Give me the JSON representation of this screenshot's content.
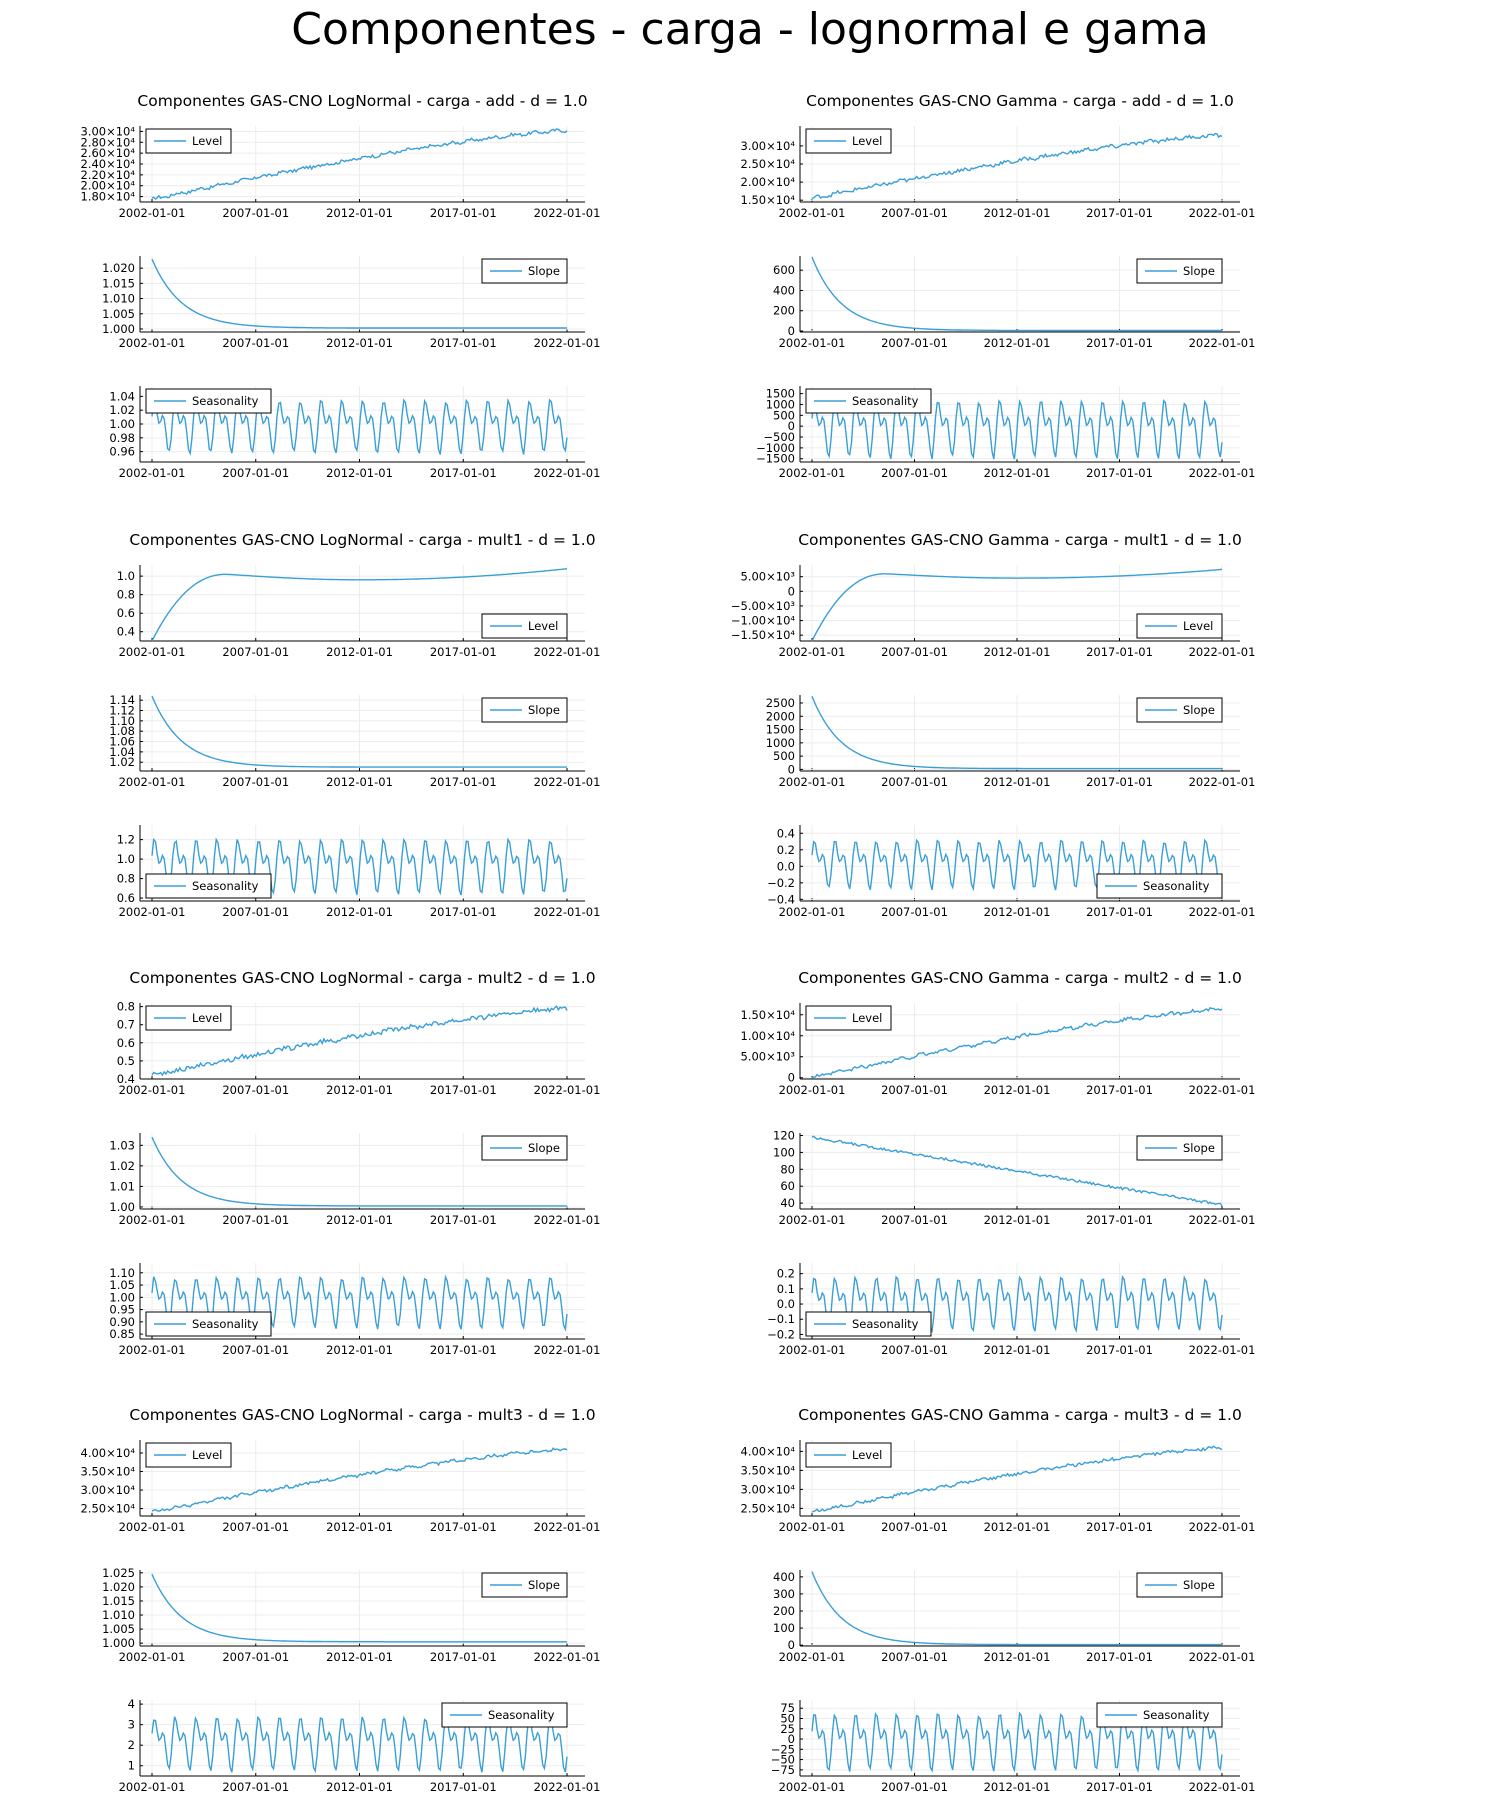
{
  "title": "Componentes - carga - lognormal e gama",
  "colors": {
    "series": "#3a9fd6",
    "axis": "#000000",
    "grid": "#ececec",
    "legend_border": "#000000"
  },
  "chart_data": [
    {
      "group_title": "Componentes GAS-CNO LogNormal - carga - add - d = 1.0",
      "type": "line",
      "label": "Level",
      "legend": "top-left",
      "xticks": [
        "2002-01-01",
        "2007-01-01",
        "2012-01-01",
        "2017-01-01",
        "2022-01-01"
      ],
      "yticks": [
        "1.80×10⁴",
        "2.00×10⁴",
        "2.20×10⁴",
        "2.40×10⁴",
        "2.60×10⁴",
        "2.80×10⁴",
        "3.00×10⁴"
      ],
      "ytick_values": [
        18000,
        20000,
        22000,
        24000,
        26000,
        28000,
        30000
      ],
      "ylim": [
        17000,
        31000
      ],
      "shape": "trend",
      "start": 17500,
      "end": 30200,
      "noise": 0.02
    },
    {
      "type": "line",
      "label": "Slope",
      "legend": "top-right",
      "xticks": [
        "2002-01-01",
        "2007-01-01",
        "2012-01-01",
        "2017-01-01",
        "2022-01-01"
      ],
      "yticks": [
        "1.000",
        "1.005",
        "1.010",
        "1.015",
        "1.020"
      ],
      "ytick_values": [
        1.0,
        1.005,
        1.01,
        1.015,
        1.02
      ],
      "ylim": [
        0.999,
        1.024
      ],
      "shape": "decay",
      "start": 1.023,
      "end": 1.0003
    },
    {
      "type": "line",
      "label": "Seasonality",
      "legend": "top-left",
      "xticks": [
        "2002-01-01",
        "2007-01-01",
        "2012-01-01",
        "2017-01-01",
        "2022-01-01"
      ],
      "yticks": [
        "0.96",
        "0.98",
        "1.00",
        "1.02",
        "1.04"
      ],
      "ytick_values": [
        0.96,
        0.98,
        1.0,
        1.02,
        1.04
      ],
      "ylim": [
        0.945,
        1.055
      ],
      "shape": "season",
      "center": 1.0,
      "amp": 0.048
    },
    {
      "group_title": "Componentes GAS-CNO Gamma - carga - add - d = 1.0",
      "type": "line",
      "label": "Level",
      "legend": "top-left",
      "xticks": [
        "2002-01-01",
        "2007-01-01",
        "2012-01-01",
        "2017-01-01",
        "2022-01-01"
      ],
      "yticks": [
        "1.50×10⁴",
        "2.00×10⁴",
        "2.50×10⁴",
        "3.00×10⁴"
      ],
      "ytick_values": [
        15000,
        20000,
        25000,
        30000
      ],
      "ylim": [
        14500,
        35500
      ],
      "shape": "trend",
      "start": 15500,
      "end": 33000,
      "noise": 0.025
    },
    {
      "type": "line",
      "label": "Slope",
      "legend": "top-right",
      "xticks": [
        "2002-01-01",
        "2007-01-01",
        "2012-01-01",
        "2017-01-01",
        "2022-01-01"
      ],
      "yticks": [
        "0",
        "200",
        "400",
        "600"
      ],
      "ytick_values": [
        0,
        200,
        400,
        600
      ],
      "ylim": [
        -10,
        740
      ],
      "shape": "decay",
      "start": 730,
      "end": 5
    },
    {
      "type": "line",
      "label": "Seasonality",
      "legend": "top-left",
      "xticks": [
        "2002-01-01",
        "2007-01-01",
        "2012-01-01",
        "2017-01-01",
        "2022-01-01"
      ],
      "yticks": [
        "−1500",
        "−1000",
        "−500",
        "0",
        "500",
        "1000",
        "1500"
      ],
      "ytick_values": [
        -1500,
        -1000,
        -500,
        0,
        500,
        1000,
        1500
      ],
      "ylim": [
        -1650,
        1850
      ],
      "shape": "season",
      "center": 0,
      "amp": 1650
    },
    {
      "group_title": "Componentes GAS-CNO LogNormal - carga - mult1 - d = 1.0",
      "type": "line",
      "label": "Level",
      "legend": "bottom-right",
      "xticks": [
        "2002-01-01",
        "2007-01-01",
        "2012-01-01",
        "2017-01-01",
        "2022-01-01"
      ],
      "yticks": [
        "0.4",
        "0.6",
        "0.8",
        "1.0"
      ],
      "ytick_values": [
        0.4,
        0.6,
        0.8,
        1.0
      ],
      "ylim": [
        0.3,
        1.12
      ],
      "shape": "hump",
      "start": 0.3,
      "peak": 1.02,
      "mid": 0.96,
      "end": 1.08
    },
    {
      "type": "line",
      "label": "Slope",
      "legend": "top-right",
      "xticks": [
        "2002-01-01",
        "2007-01-01",
        "2012-01-01",
        "2017-01-01",
        "2022-01-01"
      ],
      "yticks": [
        "1.02",
        "1.04",
        "1.06",
        "1.08",
        "1.10",
        "1.12",
        "1.14"
      ],
      "ytick_values": [
        1.02,
        1.04,
        1.06,
        1.08,
        1.1,
        1.12,
        1.14
      ],
      "ylim": [
        1.003,
        1.15
      ],
      "shape": "decay",
      "start": 1.148,
      "end": 1.0105
    },
    {
      "type": "line",
      "label": "Seasonality",
      "legend": "bottom-left",
      "xticks": [
        "2002-01-01",
        "2007-01-01",
        "2012-01-01",
        "2017-01-01",
        "2022-01-01"
      ],
      "yticks": [
        "0.6",
        "0.8",
        "1.0",
        "1.2"
      ],
      "ytick_values": [
        0.6,
        0.8,
        1.0,
        1.2
      ],
      "ylim": [
        0.57,
        1.35
      ],
      "shape": "season",
      "center": 0.95,
      "amp": 0.35
    },
    {
      "group_title": "Componentes GAS-CNO Gamma - carga - mult1 - d = 1.0",
      "type": "line",
      "label": "Level",
      "legend": "bottom-right",
      "xticks": [
        "2002-01-01",
        "2007-01-01",
        "2012-01-01",
        "2017-01-01",
        "2022-01-01"
      ],
      "yticks": [
        "−1.50×10⁴",
        "−1.00×10⁴",
        "−5.00×10³",
        "0",
        "5.00×10³"
      ],
      "ytick_values": [
        -15000,
        -10000,
        -5000,
        0,
        5000
      ],
      "ylim": [
        -17000,
        9000
      ],
      "shape": "hump",
      "start": -17000,
      "peak": 6000,
      "mid": 4500,
      "end": 7500
    },
    {
      "type": "line",
      "label": "Slope",
      "legend": "top-right",
      "xticks": [
        "2002-01-01",
        "2007-01-01",
        "2012-01-01",
        "2017-01-01",
        "2022-01-01"
      ],
      "yticks": [
        "0",
        "500",
        "1000",
        "1500",
        "2000",
        "2500"
      ],
      "ytick_values": [
        0,
        500,
        1000,
        1500,
        2000,
        2500
      ],
      "ylim": [
        -60,
        2800
      ],
      "shape": "decay",
      "start": 2750,
      "end": 30
    },
    {
      "type": "line",
      "label": "Seasonality",
      "legend": "bottom-right",
      "xticks": [
        "2002-01-01",
        "2007-01-01",
        "2012-01-01",
        "2017-01-01",
        "2022-01-01"
      ],
      "yticks": [
        "−0.4",
        "−0.2",
        "0.0",
        "0.2",
        "0.4"
      ],
      "ytick_values": [
        -0.4,
        -0.2,
        0.0,
        0.2,
        0.4
      ],
      "ylim": [
        -0.42,
        0.5
      ],
      "shape": "season",
      "center": 0.05,
      "amp": 0.37
    },
    {
      "group_title": "Componentes GAS-CNO LogNormal - carga - mult2 - d = 1.0",
      "type": "line",
      "label": "Level",
      "legend": "top-left",
      "xticks": [
        "2002-01-01",
        "2007-01-01",
        "2012-01-01",
        "2017-01-01",
        "2022-01-01"
      ],
      "yticks": [
        "0.4",
        "0.5",
        "0.6",
        "0.7",
        "0.8"
      ],
      "ytick_values": [
        0.4,
        0.5,
        0.6,
        0.7,
        0.8
      ],
      "ylim": [
        0.4,
        0.82
      ],
      "shape": "trend",
      "start": 0.42,
      "end": 0.79,
      "noise": 0.03
    },
    {
      "type": "line",
      "label": "Slope",
      "legend": "top-right",
      "xticks": [
        "2002-01-01",
        "2007-01-01",
        "2012-01-01",
        "2017-01-01",
        "2022-01-01"
      ],
      "yticks": [
        "1.00",
        "1.01",
        "1.02",
        "1.03"
      ],
      "ytick_values": [
        1.0,
        1.01,
        1.02,
        1.03
      ],
      "ylim": [
        0.999,
        1.036
      ],
      "shape": "decay",
      "start": 1.034,
      "end": 1.0005
    },
    {
      "type": "line",
      "label": "Seasonality",
      "legend": "bottom-left",
      "xticks": [
        "2002-01-01",
        "2007-01-01",
        "2012-01-01",
        "2017-01-01",
        "2022-01-01"
      ],
      "yticks": [
        "0.85",
        "0.90",
        "0.95",
        "1.00",
        "1.05",
        "1.10"
      ],
      "ytick_values": [
        0.85,
        0.9,
        0.95,
        1.0,
        1.05,
        1.1
      ],
      "ylim": [
        0.83,
        1.14
      ],
      "shape": "season",
      "center": 0.99,
      "amp": 0.13
    },
    {
      "group_title": "Componentes GAS-CNO Gamma - carga - mult2 - d = 1.0",
      "type": "line",
      "label": "Level",
      "legend": "top-left",
      "xticks": [
        "2002-01-01",
        "2007-01-01",
        "2012-01-01",
        "2017-01-01",
        "2022-01-01"
      ],
      "yticks": [
        "0",
        "5.00×10³",
        "1.00×10⁴",
        "1.50×10⁴"
      ],
      "ytick_values": [
        0,
        5000,
        10000,
        15000
      ],
      "ylim": [
        -300,
        17800
      ],
      "shape": "trend",
      "start": 0,
      "end": 16300,
      "noise": 0.02
    },
    {
      "type": "line",
      "label": "Slope",
      "legend": "top-right",
      "xticks": [
        "2002-01-01",
        "2007-01-01",
        "2012-01-01",
        "2017-01-01",
        "2022-01-01"
      ],
      "yticks": [
        "40",
        "60",
        "80",
        "100",
        "120"
      ],
      "ytick_values": [
        40,
        60,
        80,
        100,
        120
      ],
      "ylim": [
        33,
        123
      ],
      "shape": "linear_down",
      "start": 118,
      "end": 38
    },
    {
      "type": "line",
      "label": "Seasonality",
      "legend": "bottom-left",
      "xticks": [
        "2002-01-01",
        "2007-01-01",
        "2012-01-01",
        "2017-01-01",
        "2022-01-01"
      ],
      "yticks": [
        "−0.2",
        "−0.1",
        "0.0",
        "0.1",
        "0.2"
      ],
      "ytick_values": [
        -0.2,
        -0.1,
        0.0,
        0.1,
        0.2
      ],
      "ylim": [
        -0.23,
        0.27
      ],
      "shape": "season",
      "center": 0.02,
      "amp": 0.22
    },
    {
      "group_title": "Componentes GAS-CNO LogNormal - carga - mult3 - d = 1.0",
      "type": "line",
      "label": "Level",
      "legend": "top-left",
      "xticks": [
        "2002-01-01",
        "2007-01-01",
        "2012-01-01",
        "2017-01-01",
        "2022-01-01"
      ],
      "yticks": [
        "2.50×10⁴",
        "3.00×10⁴",
        "3.50×10⁴",
        "4.00×10⁴"
      ],
      "ytick_values": [
        25000,
        30000,
        35000,
        40000
      ],
      "ylim": [
        23000,
        43500
      ],
      "shape": "trend",
      "start": 24000,
      "end": 41000,
      "noise": 0.02
    },
    {
      "type": "line",
      "label": "Slope",
      "legend": "top-right",
      "xticks": [
        "2002-01-01",
        "2007-01-01",
        "2012-01-01",
        "2017-01-01",
        "2022-01-01"
      ],
      "yticks": [
        "1.000",
        "1.005",
        "1.010",
        "1.015",
        "1.020",
        "1.025"
      ],
      "ytick_values": [
        1.0,
        1.005,
        1.01,
        1.015,
        1.02,
        1.025
      ],
      "ylim": [
        0.999,
        1.026
      ],
      "shape": "decay",
      "start": 1.0245,
      "end": 1.0005
    },
    {
      "type": "line",
      "label": "Seasonality",
      "legend": "top-right",
      "xticks": [
        "2002-01-01",
        "2007-01-01",
        "2012-01-01",
        "2017-01-01",
        "2022-01-01"
      ],
      "yticks": [
        "1",
        "2",
        "3",
        "4"
      ],
      "ytick_values": [
        1,
        2,
        3,
        4
      ],
      "ylim": [
        0.5,
        4.2
      ],
      "shape": "season",
      "center": 2.2,
      "amp": 1.65
    },
    {
      "group_title": "Componentes GAS-CNO Gamma - carga - mult3 - d = 1.0",
      "type": "line",
      "label": "Level",
      "legend": "top-left",
      "xticks": [
        "2002-01-01",
        "2007-01-01",
        "2012-01-01",
        "2017-01-01",
        "2022-01-01"
      ],
      "yticks": [
        "2.50×10⁴",
        "3.00×10⁴",
        "3.50×10⁴",
        "4.00×10⁴"
      ],
      "ytick_values": [
        25000,
        30000,
        35000,
        40000
      ],
      "ylim": [
        23000,
        43000
      ],
      "shape": "trend",
      "start": 24000,
      "end": 41000,
      "noise": 0.02
    },
    {
      "type": "line",
      "label": "Slope",
      "legend": "top-right",
      "xticks": [
        "2002-01-01",
        "2007-01-01",
        "2012-01-01",
        "2017-01-01",
        "2022-01-01"
      ],
      "yticks": [
        "0",
        "100",
        "200",
        "300",
        "400"
      ],
      "ytick_values": [
        0,
        100,
        200,
        300,
        400
      ],
      "ylim": [
        -5,
        440
      ],
      "shape": "decay",
      "start": 430,
      "end": 3
    },
    {
      "type": "line",
      "label": "Seasonality",
      "legend": "top-right",
      "xticks": [
        "2002-01-01",
        "2007-01-01",
        "2012-01-01",
        "2017-01-01",
        "2022-01-01"
      ],
      "yticks": [
        "−75",
        "−50",
        "−25",
        "0",
        "25",
        "50",
        "75"
      ],
      "ytick_values": [
        -75,
        -50,
        -25,
        0,
        25,
        50,
        75
      ],
      "ylim": [
        -90,
        95
      ],
      "shape": "season",
      "center": 0,
      "amp": 87
    }
  ]
}
